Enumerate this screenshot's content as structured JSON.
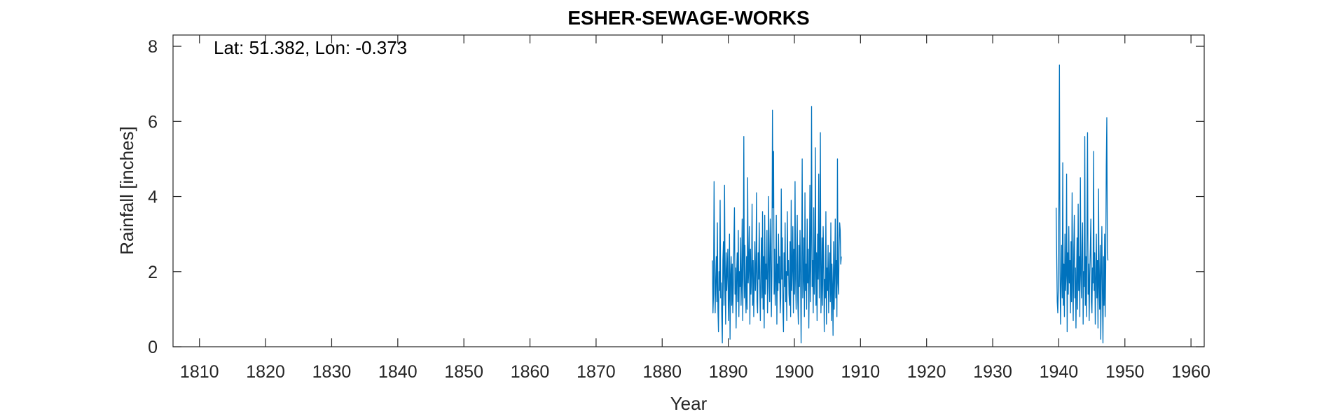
{
  "chart_data": {
    "type": "line",
    "title": "ESHER-SEWAGE-WORKS",
    "annotation": "Lat: 51.382, Lon: -0.373",
    "xlabel": "Year",
    "ylabel": "Rainfall [inches]",
    "xlim": [
      1806,
      1962
    ],
    "ylim": [
      0,
      8.3
    ],
    "xticks": [
      1810,
      1820,
      1830,
      1840,
      1850,
      1860,
      1870,
      1880,
      1890,
      1900,
      1910,
      1920,
      1930,
      1940,
      1950,
      1960
    ],
    "yticks": [
      0,
      2,
      4,
      6,
      8
    ],
    "grid": false,
    "line_color": "#0072BD",
    "series": [
      {
        "segments": [
          {
            "start": 1887.6,
            "step": 0.0833333,
            "values": [
              2.3,
              0.9,
              1.4,
              4.4,
              2.1,
              0.9,
              1.8,
              2.4,
              1.2,
              3.3,
              1.0,
              0.4,
              2.0,
              1.5,
              3.9,
              1.3,
              1.7,
              0.8,
              0.1,
              2.3,
              2.8,
              1.1,
              4.3,
              1.9,
              0.6,
              2.5,
              1.5,
              2.0,
              2.6,
              0.7,
              1.3,
              3.0,
              0.2,
              1.9,
              2.4,
              1.1,
              2.2,
              0.9,
              1.6,
              2.8,
              3.7,
              1.4,
              2.1,
              0.5,
              1.9,
              2.5,
              1.2,
              3.1,
              0.8,
              2.0,
              1.6,
              2.9,
              1.1,
              1.8,
              3.4,
              0.7,
              2.2,
              5.6,
              1.3,
              2.7,
              1.5,
              0.9,
              2.4,
              1.0,
              4.5,
              1.7,
              2.1,
              3.2,
              0.6,
              2.6,
              1.4,
              1.9,
              3.8,
              1.1,
              2.3,
              0.8,
              1.7,
              2.8,
              1.5,
              2.0,
              4.1,
              1.2,
              0.9,
              2.5,
              1.8,
              3.3,
              1.6,
              0.7,
              2.1,
              2.9,
              1.3,
              3.6,
              1.0,
              2.4,
              0.5,
              3.5,
              1.4,
              2.2,
              1.8,
              3.1,
              0.9,
              1.6,
              4.0,
              2.0,
              1.2,
              3.4,
              2.7,
              0.8,
              1.9,
              6.3,
              3.7,
              5.2,
              1.4,
              2.6,
              1.1,
              1.8,
              3.5,
              0.6,
              2.2,
              1.5,
              3.0,
              1.7,
              2.4,
              0.9,
              1.3,
              4.2,
              1.8,
              2.9,
              1.0,
              0.4,
              2.5,
              1.6,
              3.3,
              1.2,
              2.0,
              0.7,
              3.6,
              1.9,
              2.3,
              1.4,
              1.1,
              2.8,
              0.8,
              3.9,
              1.5,
              2.1,
              3.2,
              0.9,
              2.6,
              1.4,
              4.4,
              1.8,
              1.0,
              2.3,
              3.5,
              1.2,
              0.6,
              2.7,
              1.6,
              3.1,
              2.0,
              0.1,
              2.4,
              5.0,
              1.3,
              1.8,
              2.9,
              0.8,
              4.1,
              1.5,
              2.2,
              1.0,
              3.4,
              1.7,
              2.6,
              0.5,
              1.9,
              4.3,
              1.2,
              2.8,
              6.4,
              1.6,
              2.3,
              0.9,
              3.7,
              1.4,
              2.0,
              5.3,
              1.1,
              2.5,
              0.7,
              3.0,
              1.8,
              4.6,
              1.3,
              2.2,
              5.7,
              0.9,
              1.6,
              2.9,
              1.1,
              3.2,
              2.4,
              0.4,
              1.8,
              1.3,
              3.6,
              0.6,
              2.1,
              1.5,
              2.7,
              0.9,
              1.9,
              2.5,
              1.2,
              3.3,
              0.7,
              2.2,
              1.6,
              0.3,
              2.8,
              1.0,
              1.9,
              3.4,
              1.3,
              2.3,
              0.8,
              5.0,
              1.7,
              1.4,
              2.6,
              3.3,
              3.1,
              2.2,
              2.4
            ]
          },
          {
            "start": 1939.6,
            "step": 0.0833333,
            "values": [
              3.7,
              2.4,
              1.2,
              0.9,
              1.6,
              4.0,
              7.5,
              2.0,
              0.6,
              1.8,
              2.7,
              1.3,
              4.9,
              1.1,
              2.2,
              0.8,
              3.0,
              1.5,
              1.9,
              4.6,
              0.4,
              2.5,
              1.4,
              3.2,
              1.7,
              2.3,
              0.9,
              2.8,
              1.2,
              4.1,
              1.6,
              0.7,
              2.6,
              3.5,
              1.3,
              2.1,
              0.5,
              1.8,
              2.9,
              1.0,
              3.8,
              1.5,
              2.4,
              0.8,
              4.5,
              1.9,
              1.3,
              2.7,
              3.3,
              0.6,
              2.0,
              1.6,
              5.6,
              1.1,
              2.4,
              0.8,
              3.1,
              5.7,
              1.4,
              2.2,
              0.7,
              1.9,
              2.6,
              3.4,
              1.2,
              0.9,
              2.1,
              1.7,
              5.2,
              1.5,
              2.5,
              0.6,
              1.8,
              3.0,
              1.3,
              2.3,
              0.5,
              4.2,
              1.6,
              1.0,
              2.7,
              0.2,
              1.9,
              3.2,
              1.4,
              0.1,
              2.4,
              1.1,
              3.0,
              0.8,
              2.1,
              4.8,
              6.1,
              2.5,
              2.3
            ]
          }
        ]
      }
    ]
  }
}
